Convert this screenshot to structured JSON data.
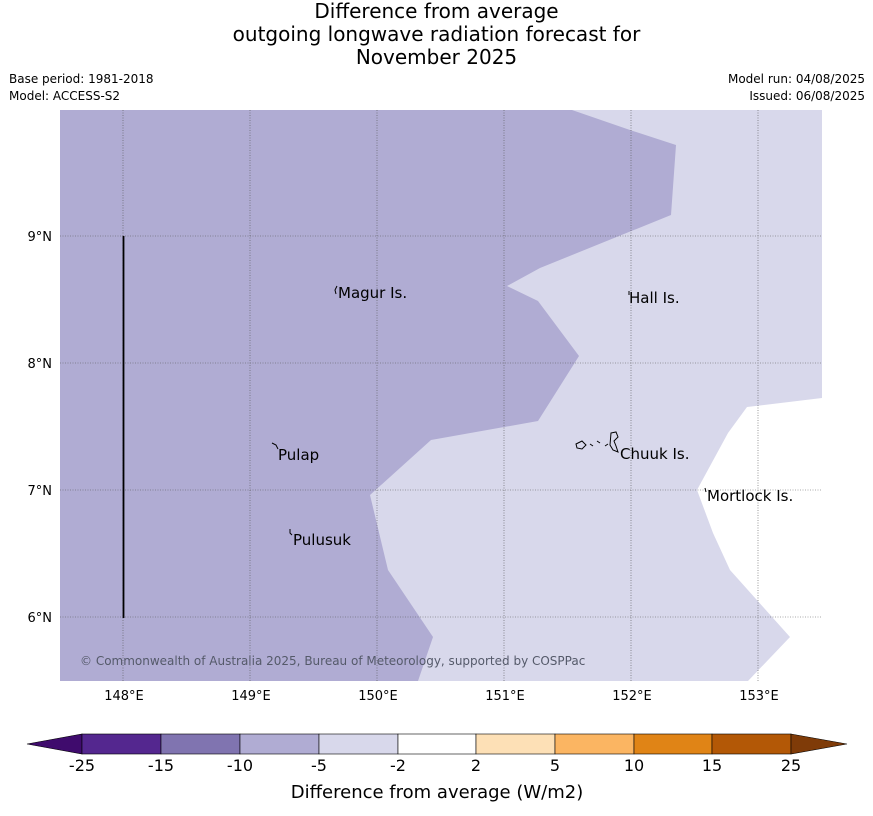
{
  "title": {
    "line1": "Difference from average",
    "line2": "outgoing longwave radiation forecast for",
    "line3": "November 2025"
  },
  "meta": {
    "base_period": "Base period: 1981-2018",
    "model": "Model: ACCESS-S2",
    "model_run": "Model run: 04/08/2025",
    "issued": "Issued: 06/08/2025"
  },
  "map": {
    "lon_range": [
      147.5,
      153.5
    ],
    "lat_range": [
      5.5,
      10.0
    ],
    "x_ticks": [
      "148°E",
      "149°E",
      "150°E",
      "151°E",
      "152°E",
      "153°E"
    ],
    "y_ticks": [
      "9°N",
      "8°N",
      "7°N",
      "6°N"
    ],
    "gridlines": true,
    "fill_colors": {
      "band_-10_-5": "#b0acd3",
      "band_-5_-2": "#d8d8eb",
      "band_-2_2": "#ffffff"
    },
    "places": [
      "Magur Is.",
      "Hall Is.",
      "Pulap",
      "Chuuk Is.",
      "Mortlock Is.",
      "Pulusuk"
    ],
    "credit": "© Commonwealth of Australia 2025, Bureau of Meteorology, supported by COSPPac"
  },
  "colorbar": {
    "label": "Difference from average (W/m2)",
    "ticks": [
      "-25",
      "-15",
      "-10",
      "-5",
      "-2",
      "2",
      "5",
      "10",
      "15",
      "25"
    ],
    "colors": [
      "#3f0b6d",
      "#54278f",
      "#8074b0",
      "#b0acd3",
      "#d8d8eb",
      "#ffffff",
      "#fde0b6",
      "#fbb562",
      "#e08416",
      "#b35806",
      "#7f3b08"
    ]
  }
}
